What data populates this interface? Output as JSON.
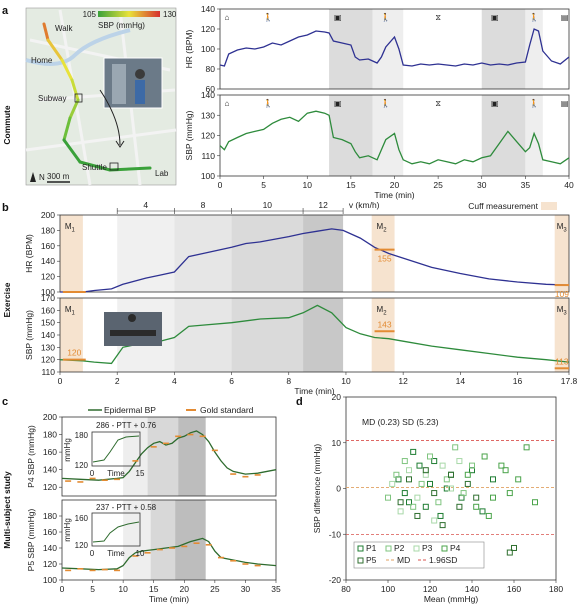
{
  "panel_labels": {
    "a": "a",
    "b": "b",
    "c": "c",
    "d": "d"
  },
  "side_labels": {
    "commute": "Commute",
    "exercise": "Exercise",
    "multi": "Multi-subject study"
  },
  "map": {
    "colorbar_min": "105",
    "colorbar_max": "130",
    "colorbar_label": "SBP (mmHg)",
    "labels": {
      "walk": "Walk",
      "home": "Home",
      "subway": "Subway",
      "shuttle": "Shuttle",
      "lab": "Lab",
      "north": "N",
      "scale": "300 m"
    },
    "colors": {
      "low": "#3aa13a",
      "mid": "#e8e23a",
      "high": "#d62f2f"
    }
  },
  "chart_data": [
    {
      "id": "a-hr",
      "type": "line",
      "title": "",
      "xlabel": "",
      "ylabel": "HR (BPM)",
      "xlim": [
        0,
        40
      ],
      "ylim": [
        60,
        140
      ],
      "yticks": [
        60,
        80,
        100,
        120,
        140
      ],
      "color": "#2e3192",
      "shaded": [
        [
          12.5,
          17.5
        ],
        [
          30,
          35
        ]
      ],
      "light_shaded": [
        [
          17.5,
          21
        ],
        [
          35,
          37
        ]
      ],
      "x": [
        0,
        0.5,
        1,
        2,
        3,
        4,
        5,
        6,
        7,
        8,
        9,
        10,
        11,
        12,
        12.5,
        13,
        14,
        15,
        15.5,
        16,
        17,
        18,
        18.5,
        19,
        20,
        20.5,
        21,
        22,
        23,
        24,
        25,
        26,
        27,
        28,
        29,
        30,
        31,
        32,
        33,
        34,
        35,
        35.5,
        36,
        36.5,
        37,
        38,
        39,
        40
      ],
      "y": [
        84,
        83,
        95,
        99,
        101,
        100,
        102,
        106,
        104,
        108,
        112,
        114,
        118,
        117,
        116,
        108,
        106,
        104,
        92,
        89,
        90,
        86,
        92,
        102,
        112,
        100,
        84,
        83,
        85,
        84,
        85,
        84,
        83,
        85,
        84,
        86,
        84,
        85,
        84,
        86,
        87,
        104,
        120,
        118,
        98,
        88,
        85,
        92
      ]
    },
    {
      "id": "a-sbp",
      "type": "line",
      "title": "",
      "xlabel": "Time (min)",
      "ylabel": "SBP (mmHg)",
      "xlim": [
        0,
        40
      ],
      "ylim": [
        100,
        140
      ],
      "yticks": [
        100,
        110,
        120,
        130,
        140
      ],
      "xticks": [
        0,
        5,
        10,
        15,
        20,
        25,
        30,
        35,
        40
      ],
      "color": "#2e8b3c",
      "shaded": [
        [
          12.5,
          17.5
        ],
        [
          30,
          35
        ]
      ],
      "light_shaded": [
        [
          17.5,
          21
        ],
        [
          35,
          37
        ]
      ],
      "x": [
        0,
        0.5,
        1,
        2,
        3,
        4,
        5,
        6,
        7,
        8,
        9,
        10,
        11,
        12,
        12.5,
        13,
        14,
        15,
        15.5,
        16,
        17,
        18,
        18.5,
        19,
        20,
        20.5,
        21,
        22,
        23,
        24,
        25,
        26,
        27,
        28,
        29,
        30,
        31,
        32,
        33,
        34,
        35,
        35.5,
        36,
        36.5,
        37,
        38,
        39,
        40
      ],
      "y": [
        115,
        113,
        117,
        119,
        121,
        122,
        123,
        126,
        128,
        129,
        127,
        131,
        132,
        131,
        130,
        119,
        118,
        116,
        112,
        109,
        110,
        108,
        113,
        118,
        121,
        113,
        108,
        106,
        107,
        106,
        108,
        107,
        106,
        108,
        107,
        109,
        110,
        116,
        122,
        117,
        112,
        114,
        121,
        116,
        108,
        107,
        106,
        109
      ]
    },
    {
      "id": "b-hr",
      "type": "line",
      "title": "",
      "xlabel": "",
      "ylabel": "HR (BPM)",
      "xlim": [
        0,
        17.8
      ],
      "ylim": [
        100,
        200
      ],
      "yticks": [
        100,
        120,
        140,
        160,
        180,
        200
      ],
      "color": "#2e3192",
      "speed_label": "v (km/h)",
      "speed_ticks": [
        "4",
        "8",
        "10",
        "12"
      ],
      "cuff_label": "Cuff measurement",
      "markers": [
        "M",
        "M",
        "M"
      ],
      "marker_subs": [
        "1",
        "2",
        "3"
      ],
      "marker_values": [
        "100",
        "155",
        "109"
      ],
      "x": [
        0,
        0.8,
        1.2,
        1.8,
        2.2,
        3,
        3.5,
        4,
        4.5,
        5,
        6,
        6.5,
        7,
        8,
        8.5,
        9,
        9.5,
        9.9,
        10.5,
        11,
        11.5,
        12,
        13,
        14,
        15,
        16,
        17,
        17.8
      ],
      "y": [
        100,
        100,
        102,
        104,
        110,
        118,
        122,
        126,
        146,
        150,
        158,
        163,
        165,
        172,
        176,
        179,
        182,
        180,
        170,
        158,
        150,
        144,
        132,
        124,
        117,
        113,
        110,
        109
      ]
    },
    {
      "id": "b-sbp",
      "type": "line",
      "title": "",
      "xlabel": "Time (min)",
      "ylabel": "SBP (mmHg)",
      "xlim": [
        0,
        17.8
      ],
      "ylim": [
        110,
        170
      ],
      "yticks": [
        110,
        120,
        130,
        140,
        150,
        160,
        170
      ],
      "xticks": [
        0,
        2,
        4,
        6,
        8,
        10,
        12,
        14,
        16,
        17.8
      ],
      "color": "#2e8b3c",
      "markers": [
        "M",
        "M",
        "M"
      ],
      "marker_subs": [
        "1",
        "2",
        "3"
      ],
      "marker_values": [
        "120",
        "143",
        "113"
      ],
      "x": [
        0,
        0.8,
        1.2,
        1.8,
        2.2,
        3,
        3.5,
        4,
        4.5,
        5,
        6,
        7,
        8,
        8.5,
        9,
        9.5,
        10,
        10.5,
        11,
        11.5,
        12,
        13,
        14,
        15,
        16,
        17,
        17.8
      ],
      "y": [
        120,
        119,
        118,
        117,
        130,
        134,
        135,
        138,
        147,
        148,
        150,
        153,
        154,
        158,
        164,
        158,
        146,
        141,
        138,
        137,
        135,
        131,
        128,
        125,
        122,
        120,
        118
      ]
    },
    {
      "id": "c-p4",
      "type": "line",
      "title": "",
      "xlabel": "",
      "ylabel": "P4 SBP (mmHg)",
      "xlim": [
        0,
        35
      ],
      "ylim": [
        110,
        200
      ],
      "yticks": [
        120,
        140,
        160,
        180,
        200
      ],
      "color": "#2e6b2e",
      "legend": {
        "epidermal": "Epidermal BP",
        "gold": "Gold standard"
      },
      "inset_label": "286 - PTT + 0.76",
      "inset_ylabel": "mmHg",
      "inset_yticks": [
        "180",
        "120"
      ],
      "inset_xlabel": "Time",
      "inset_xticks": [
        "0",
        "15"
      ],
      "x": [
        0,
        3,
        6,
        9,
        10,
        11,
        12,
        13,
        14,
        15,
        16,
        17,
        18,
        19,
        20,
        21,
        22,
        23,
        24,
        25,
        26,
        27,
        28,
        30,
        32,
        35
      ],
      "y": [
        130,
        129,
        128,
        130,
        131,
        138,
        148,
        158,
        165,
        170,
        172,
        168,
        170,
        176,
        178,
        182,
        184,
        180,
        172,
        160,
        150,
        142,
        138,
        135,
        136,
        140
      ]
    },
    {
      "id": "c-p5",
      "type": "line",
      "title": "",
      "xlabel": "Time (min)",
      "ylabel": "P5 SBP (mmHg)",
      "xlim": [
        0,
        35
      ],
      "ylim": [
        100,
        200
      ],
      "yticks": [
        100,
        120,
        140,
        160,
        180
      ],
      "xticks": [
        0,
        5,
        10,
        15,
        20,
        25,
        30,
        35
      ],
      "color": "#2e6b2e",
      "inset_label": "237 - PTT + 0.58",
      "inset_ylabel": "mmHg",
      "inset_yticks": [
        "160",
        "120"
      ],
      "inset_xlabel": "Time",
      "inset_xticks": [
        "0",
        "10"
      ],
      "x": [
        0,
        3,
        6,
        9,
        10,
        11,
        12,
        13,
        14,
        15,
        17,
        19,
        20,
        21,
        22,
        23,
        24,
        25,
        26,
        28,
        30,
        32,
        35
      ],
      "y": [
        115,
        114,
        113,
        114,
        118,
        128,
        134,
        136,
        137,
        138,
        140,
        142,
        145,
        148,
        150,
        152,
        148,
        136,
        128,
        125,
        122,
        120,
        118
      ]
    },
    {
      "id": "d",
      "type": "scatter",
      "title": "",
      "xlabel": "Mean (mmHg)",
      "ylabel": "SBP difference (mmHg)",
      "xlim": [
        80,
        180
      ],
      "ylim": [
        -20,
        20
      ],
      "xticks": [
        80,
        100,
        120,
        140,
        160,
        180
      ],
      "yticks": [
        -20,
        -10,
        0,
        10,
        20
      ],
      "annotation": "MD (0.23)  SD (5.23)",
      "md": 0.23,
      "upper": 10.48,
      "lower": -10.02,
      "legend": [
        "P1",
        "P2",
        "P3",
        "P4",
        "P5",
        "MD",
        "1.96SD"
      ],
      "series": [
        {
          "name": "P1",
          "color": "#1e7d32",
          "x": [
            105,
            110,
            115,
            120,
            125,
            130,
            135,
            112,
            118,
            122,
            128,
            108,
            140,
            145,
            150
          ],
          "y": [
            2,
            -3,
            5,
            1,
            -6,
            3,
            -2,
            8,
            -4,
            6,
            0,
            -1,
            4,
            -5,
            2
          ]
        },
        {
          "name": "P2",
          "color": "#7fc47f",
          "x": [
            100,
            104,
            108,
            112,
            116,
            120,
            124,
            128,
            132,
            136,
            140
          ],
          "y": [
            -2,
            3,
            6,
            -4,
            1,
            7,
            -3,
            2,
            9,
            -1,
            5
          ]
        },
        {
          "name": "P3",
          "color": "#a8d8a8",
          "x": [
            102,
            106,
            110,
            114,
            118,
            122,
            126,
            130,
            134
          ],
          "y": [
            1,
            -5,
            4,
            -2,
            3,
            -7,
            5,
            0,
            6
          ]
        },
        {
          "name": "P4",
          "color": "#4aa34a",
          "x": [
            138,
            142,
            146,
            150,
            154,
            158,
            162,
            166,
            170,
            148,
            156
          ],
          "y": [
            3,
            -4,
            7,
            -2,
            5,
            -1,
            2,
            9,
            -3,
            -6,
            4
          ]
        },
        {
          "name": "P5",
          "color": "#2f6f2f",
          "x": [
            106,
            110,
            114,
            118,
            122,
            126,
            130,
            134,
            138,
            142,
            158,
            160
          ],
          "y": [
            -3,
            2,
            -6,
            4,
            -1,
            -8,
            3,
            -4,
            1,
            -2,
            -14,
            -13
          ]
        }
      ]
    }
  ]
}
